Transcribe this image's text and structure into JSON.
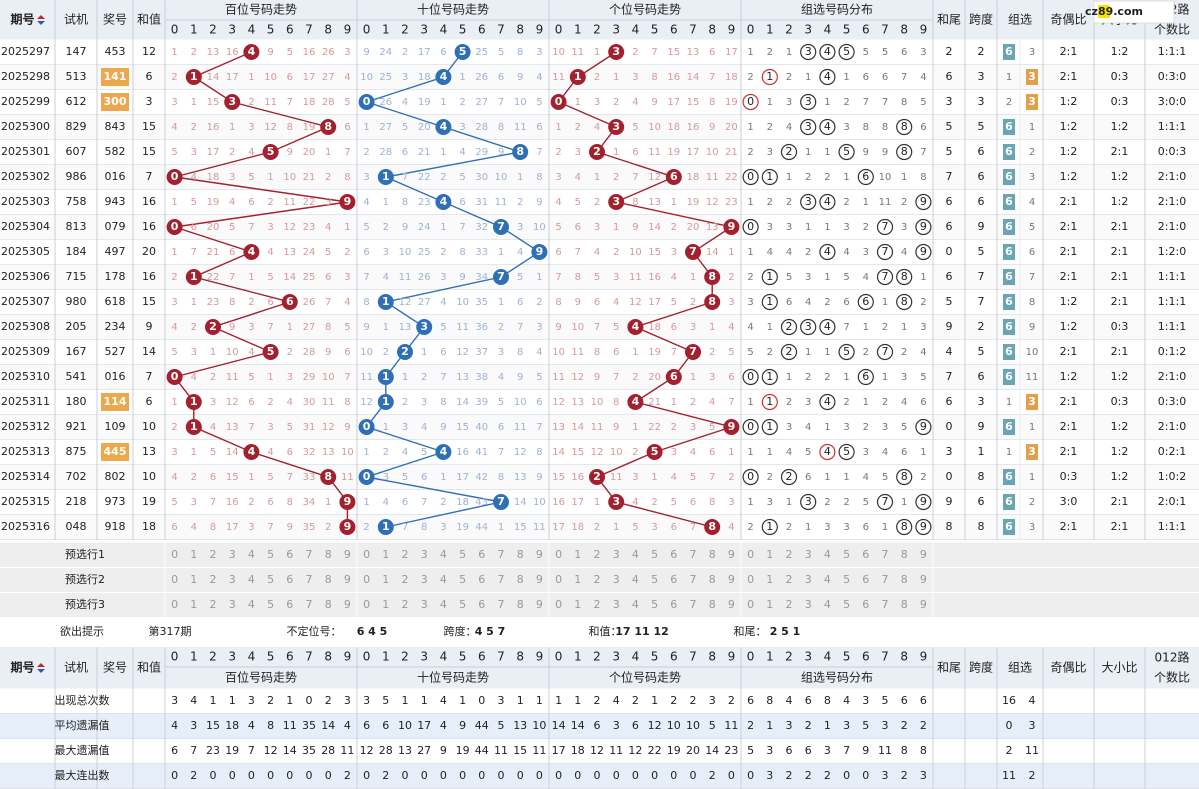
{
  "logo": "cz89.com",
  "header": {
    "period": "期号",
    "test": "试机",
    "draw": "奖号",
    "sum": "和值",
    "sections": [
      "百位号码走势",
      "十位号码走势",
      "个位号码走势",
      "组选号码分布"
    ],
    "digits": [
      0,
      1,
      2,
      3,
      4,
      5,
      6,
      7,
      8,
      9
    ],
    "tail": "和尾",
    "span": "跨度",
    "group": "组选",
    "odd_even": "奇偶比",
    "big_small": "大小比",
    "route": [
      "012路",
      "个数比"
    ]
  },
  "rows": [
    {
      "period": "2025297",
      "test": "147",
      "draw": "453",
      "sum": 12,
      "hundreds": [
        1,
        2,
        13,
        16,
        4,
        9,
        5,
        16,
        26,
        3
      ],
      "tens": [
        9,
        24,
        2,
        17,
        6,
        5,
        25,
        5,
        8,
        3
      ],
      "units": [
        10,
        11,
        1,
        3,
        2,
        7,
        15,
        13,
        6,
        17
      ],
      "group": [
        1,
        2,
        1,
        3,
        4,
        5,
        5,
        5,
        6,
        3
      ],
      "tail": 2,
      "span": 2,
      "zu": [
        6,
        3
      ],
      "odd_even": "2:1",
      "big_small": "1:2",
      "route": "1:1:1"
    },
    {
      "period": "2025298",
      "test": "513",
      "draw": "141",
      "sum": 6,
      "hundreds": [
        2,
        1,
        14,
        17,
        1,
        10,
        6,
        17,
        27,
        4
      ],
      "tens": [
        10,
        25,
        3,
        18,
        4,
        1,
        26,
        6,
        9,
        4
      ],
      "units": [
        11,
        1,
        2,
        1,
        3,
        8,
        16,
        14,
        7,
        18
      ],
      "group": [
        2,
        1,
        2,
        1,
        4,
        1,
        6,
        6,
        7,
        4
      ],
      "tail": 6,
      "span": 3,
      "zu": [
        1,
        3
      ],
      "odd_even": "2:1",
      "big_small": "0:3",
      "route": "0:3:0"
    },
    {
      "period": "2025299",
      "test": "612",
      "draw": "300",
      "sum": 3,
      "hundreds": [
        3,
        1,
        15,
        3,
        2,
        11,
        7,
        18,
        28,
        5
      ],
      "tens": [
        0,
        26,
        4,
        19,
        1,
        2,
        27,
        7,
        10,
        5
      ],
      "units": [
        0,
        1,
        3,
        2,
        4,
        9,
        17,
        15,
        8,
        19
      ],
      "group": [
        0,
        1,
        3,
        3,
        1,
        2,
        7,
        7,
        8,
        5
      ],
      "tail": 3,
      "span": 3,
      "zu": [
        2,
        3
      ],
      "odd_even": "1:2",
      "big_small": "0:3",
      "route": "3:0:0"
    },
    {
      "period": "2025300",
      "test": "829",
      "draw": "843",
      "sum": 15,
      "hundreds": [
        4,
        2,
        16,
        1,
        3,
        12,
        8,
        19,
        8,
        6
      ],
      "tens": [
        1,
        27,
        5,
        20,
        4,
        3,
        28,
        8,
        11,
        6
      ],
      "units": [
        1,
        2,
        4,
        3,
        5,
        10,
        18,
        16,
        9,
        20
      ],
      "group": [
        1,
        2,
        4,
        3,
        4,
        3,
        8,
        8,
        8,
        6
      ],
      "tail": 5,
      "span": 5,
      "zu": [
        6,
        1
      ],
      "odd_even": "1:2",
      "big_small": "1:2",
      "route": "1:1:1"
    },
    {
      "period": "2025301",
      "test": "607",
      "draw": "582",
      "sum": 15,
      "hundreds": [
        5,
        3,
        17,
        2,
        4,
        5,
        9,
        20,
        1,
        7
      ],
      "tens": [
        2,
        28,
        6,
        21,
        1,
        4,
        29,
        9,
        8,
        7
      ],
      "units": [
        2,
        3,
        2,
        1,
        6,
        11,
        19,
        17,
        10,
        21
      ],
      "group": [
        2,
        3,
        2,
        1,
        1,
        5,
        9,
        9,
        8,
        7
      ],
      "tail": 5,
      "span": 6,
      "zu": [
        6,
        2
      ],
      "odd_even": "1:2",
      "big_small": "2:1",
      "route": "0:0:3"
    },
    {
      "period": "2025302",
      "test": "986",
      "draw": "016",
      "sum": 7,
      "hundreds": [
        0,
        4,
        18,
        3,
        5,
        1,
        10,
        21,
        2,
        8
      ],
      "tens": [
        3,
        1,
        7,
        22,
        2,
        5,
        30,
        10,
        1,
        8
      ],
      "units": [
        3,
        4,
        1,
        2,
        7,
        12,
        6,
        18,
        11,
        22
      ],
      "group": [
        0,
        1,
        1,
        2,
        2,
        1,
        6,
        10,
        1,
        8
      ],
      "tail": 7,
      "span": 6,
      "zu": [
        6,
        3
      ],
      "odd_even": "1:2",
      "big_small": "1:2",
      "route": "2:1:0"
    },
    {
      "period": "2025303",
      "test": "758",
      "draw": "943",
      "sum": 16,
      "hundreds": [
        1,
        5,
        19,
        4,
        6,
        2,
        11,
        22,
        3,
        9
      ],
      "tens": [
        4,
        1,
        8,
        23,
        4,
        6,
        31,
        11,
        2,
        9
      ],
      "units": [
        4,
        5,
        2,
        3,
        8,
        13,
        1,
        19,
        12,
        23
      ],
      "group": [
        1,
        2,
        2,
        3,
        4,
        2,
        1,
        11,
        2,
        9
      ],
      "tail": 6,
      "span": 6,
      "zu": [
        6,
        4
      ],
      "odd_even": "2:1",
      "big_small": "1:2",
      "route": "2:1:0"
    },
    {
      "period": "2025304",
      "test": "813",
      "draw": "079",
      "sum": 16,
      "hundreds": [
        0,
        6,
        20,
        5,
        7,
        3,
        12,
        23,
        4,
        1
      ],
      "tens": [
        5,
        2,
        9,
        24,
        1,
        7,
        32,
        7,
        3,
        10
      ],
      "units": [
        5,
        6,
        3,
        1,
        9,
        14,
        2,
        20,
        13,
        9
      ],
      "group": [
        0,
        3,
        3,
        1,
        1,
        3,
        2,
        7,
        3,
        9
      ],
      "tail": 6,
      "span": 9,
      "zu": [
        6,
        5
      ],
      "odd_even": "2:1",
      "big_small": "2:1",
      "route": "2:1:0"
    },
    {
      "period": "2025305",
      "test": "184",
      "draw": "497",
      "sum": 20,
      "hundreds": [
        1,
        7,
        21,
        6,
        4,
        4,
        13,
        24,
        5,
        2
      ],
      "tens": [
        6,
        3,
        10,
        25,
        2,
        8,
        33,
        1,
        4,
        9
      ],
      "units": [
        6,
        7,
        4,
        2,
        10,
        15,
        3,
        7,
        14,
        1
      ],
      "group": [
        1,
        4,
        4,
        2,
        4,
        4,
        3,
        7,
        4,
        9
      ],
      "tail": 0,
      "span": 5,
      "zu": [
        6,
        6
      ],
      "odd_even": "2:1",
      "big_small": "2:1",
      "route": "1:2:0"
    },
    {
      "period": "2025306",
      "test": "715",
      "draw": "178",
      "sum": 16,
      "hundreds": [
        2,
        1,
        22,
        7,
        1,
        5,
        14,
        25,
        6,
        3
      ],
      "tens": [
        7,
        4,
        11,
        26,
        3,
        9,
        34,
        7,
        5,
        1
      ],
      "units": [
        7,
        8,
        5,
        3,
        11,
        16,
        4,
        1,
        8,
        2
      ],
      "group": [
        2,
        1,
        5,
        3,
        1,
        5,
        4,
        7,
        8,
        1
      ],
      "tail": 6,
      "span": 7,
      "zu": [
        6,
        7
      ],
      "odd_even": "2:1",
      "big_small": "2:1",
      "route": "1:1:1"
    },
    {
      "period": "2025307",
      "test": "980",
      "draw": "618",
      "sum": 15,
      "hundreds": [
        3,
        1,
        23,
        8,
        2,
        6,
        6,
        26,
        7,
        4
      ],
      "tens": [
        8,
        1,
        12,
        27,
        4,
        10,
        35,
        1,
        6,
        2
      ],
      "units": [
        8,
        9,
        6,
        4,
        12,
        17,
        5,
        2,
        8,
        3
      ],
      "group": [
        3,
        1,
        6,
        4,
        2,
        6,
        6,
        1,
        8,
        2
      ],
      "tail": 5,
      "span": 7,
      "zu": [
        6,
        8
      ],
      "odd_even": "1:2",
      "big_small": "2:1",
      "route": "1:1:1"
    },
    {
      "period": "2025308",
      "test": "205",
      "draw": "234",
      "sum": 9,
      "hundreds": [
        4,
        2,
        2,
        9,
        3,
        7,
        1,
        27,
        8,
        5
      ],
      "tens": [
        9,
        1,
        13,
        3,
        5,
        11,
        36,
        2,
        7,
        3
      ],
      "units": [
        9,
        10,
        7,
        5,
        4,
        18,
        6,
        3,
        1,
        4
      ],
      "group": [
        4,
        1,
        2,
        3,
        4,
        7,
        1,
        2,
        1,
        3
      ],
      "tail": 9,
      "span": 2,
      "zu": [
        6,
        9
      ],
      "odd_even": "1:2",
      "big_small": "0:3",
      "route": "1:1:1"
    },
    {
      "period": "2025309",
      "test": "167",
      "draw": "527",
      "sum": 14,
      "hundreds": [
        5,
        3,
        1,
        10,
        4,
        5,
        2,
        28,
        9,
        6
      ],
      "tens": [
        10,
        2,
        2,
        1,
        6,
        12,
        37,
        3,
        8,
        4
      ],
      "units": [
        10,
        11,
        8,
        6,
        1,
        19,
        7,
        7,
        2,
        5
      ],
      "group": [
        5,
        2,
        2,
        1,
        1,
        5,
        2,
        7,
        2,
        4
      ],
      "tail": 4,
      "span": 5,
      "zu": [
        6,
        10
      ],
      "odd_even": "2:1",
      "big_small": "2:1",
      "route": "0:1:2"
    },
    {
      "period": "2025310",
      "test": "541",
      "draw": "016",
      "sum": 7,
      "hundreds": [
        0,
        4,
        2,
        11,
        5,
        1,
        3,
        29,
        10,
        7
      ],
      "tens": [
        11,
        1,
        1,
        2,
        7,
        13,
        38,
        4,
        9,
        5
      ],
      "units": [
        11,
        12,
        9,
        7,
        2,
        20,
        6,
        1,
        3,
        6
      ],
      "group": [
        0,
        1,
        1,
        2,
        2,
        1,
        6,
        1,
        3,
        5
      ],
      "tail": 7,
      "span": 6,
      "zu": [
        6,
        11
      ],
      "odd_even": "1:2",
      "big_small": "1:2",
      "route": "2:1:0"
    },
    {
      "period": "2025311",
      "test": "180",
      "draw": "114",
      "sum": 6,
      "hundreds": [
        1,
        1,
        3,
        12,
        6,
        2,
        4,
        30,
        11,
        8
      ],
      "tens": [
        12,
        1,
        2,
        3,
        8,
        14,
        39,
        5,
        10,
        6
      ],
      "units": [
        12,
        13,
        10,
        8,
        4,
        21,
        1,
        2,
        4,
        7
      ],
      "group": [
        1,
        1,
        2,
        3,
        4,
        2,
        1,
        2,
        4,
        6
      ],
      "tail": 6,
      "span": 3,
      "zu": [
        1,
        3
      ],
      "odd_even": "2:1",
      "big_small": "0:3",
      "route": "0:3:0"
    },
    {
      "period": "2025312",
      "test": "921",
      "draw": "109",
      "sum": 10,
      "hundreds": [
        2,
        1,
        4,
        13,
        7,
        3,
        5,
        31,
        12,
        9
      ],
      "tens": [
        0,
        1,
        3,
        4,
        9,
        15,
        40,
        6,
        11,
        7
      ],
      "units": [
        13,
        14,
        11,
        9,
        1,
        22,
        2,
        3,
        5,
        9
      ],
      "group": [
        0,
        1,
        3,
        4,
        1,
        3,
        2,
        3,
        5,
        9
      ],
      "tail": 0,
      "span": 9,
      "zu": [
        6,
        1
      ],
      "odd_even": "2:1",
      "big_small": "1:2",
      "route": "2:1:0"
    },
    {
      "period": "2025313",
      "test": "875",
      "draw": "445",
      "sum": 13,
      "hundreds": [
        3,
        1,
        5,
        14,
        4,
        4,
        6,
        32,
        13,
        10
      ],
      "tens": [
        1,
        2,
        4,
        5,
        4,
        16,
        41,
        7,
        12,
        8
      ],
      "units": [
        14,
        15,
        12,
        10,
        2,
        5,
        3,
        4,
        6,
        1
      ],
      "group": [
        1,
        1,
        4,
        5,
        4,
        5,
        3,
        4,
        6,
        1
      ],
      "tail": 3,
      "span": 1,
      "zu": [
        1,
        3
      ],
      "odd_even": "2:1",
      "big_small": "1:2",
      "route": "0:2:1"
    },
    {
      "period": "2025314",
      "test": "702",
      "draw": "802",
      "sum": 10,
      "hundreds": [
        4,
        2,
        6,
        15,
        1,
        5,
        7,
        33,
        8,
        11
      ],
      "tens": [
        0,
        3,
        5,
        6,
        1,
        17,
        42,
        8,
        13,
        9
      ],
      "units": [
        15,
        16,
        2,
        11,
        3,
        1,
        4,
        5,
        7,
        2
      ],
      "group": [
        0,
        2,
        2,
        6,
        1,
        1,
        4,
        5,
        8,
        2
      ],
      "tail": 0,
      "span": 8,
      "zu": [
        6,
        1
      ],
      "odd_even": "0:3",
      "big_small": "1:2",
      "route": "1:0:2"
    },
    {
      "period": "2025315",
      "test": "218",
      "draw": "973",
      "sum": 19,
      "hundreds": [
        5,
        3,
        7,
        16,
        2,
        6,
        8,
        34,
        1,
        9
      ],
      "tens": [
        1,
        4,
        6,
        7,
        2,
        18,
        43,
        7,
        14,
        10
      ],
      "units": [
        16,
        17,
        1,
        3,
        4,
        2,
        5,
        6,
        8,
        3
      ],
      "group": [
        1,
        3,
        1,
        3,
        2,
        2,
        5,
        7,
        1,
        9
      ],
      "tail": 9,
      "span": 6,
      "zu": [
        6,
        2
      ],
      "odd_even": "3:0",
      "big_small": "2:1",
      "route": "2:0:1"
    },
    {
      "period": "2025316",
      "test": "048",
      "draw": "918",
      "sum": 18,
      "hundreds": [
        6,
        4,
        8,
        17,
        3,
        7,
        9,
        35,
        2,
        9
      ],
      "tens": [
        2,
        1,
        7,
        8,
        3,
        19,
        44,
        1,
        15,
        11
      ],
      "units": [
        17,
        18,
        2,
        1,
        5,
        3,
        6,
        7,
        8,
        4
      ],
      "group": [
        2,
        1,
        2,
        1,
        3,
        3,
        6,
        1,
        8,
        9
      ],
      "tail": 8,
      "span": 8,
      "zu": [
        6,
        3
      ],
      "odd_even": "2:1",
      "big_small": "2:1",
      "route": "1:1:1"
    }
  ],
  "predict": {
    "labels": [
      "预选行1",
      "预选行2",
      "预选行3"
    ]
  },
  "hint": {
    "label": "欲出提示",
    "period": "第317期",
    "items": [
      {
        "label": "不定位号：",
        "value": "6 4 5"
      },
      {
        "label": "跨度：",
        "value": "4 5 7"
      },
      {
        "label": "和值：",
        "value": "17 11 12"
      },
      {
        "label": "和尾：",
        "value": "2 5 1"
      }
    ]
  },
  "stats": [
    {
      "label": "出现总次数",
      "hundreds": [
        3,
        4,
        1,
        1,
        3,
        2,
        1,
        0,
        2,
        3
      ],
      "tens": [
        3,
        5,
        1,
        1,
        4,
        1,
        0,
        3,
        1,
        1
      ],
      "units": [
        1,
        1,
        2,
        4,
        2,
        1,
        2,
        2,
        3,
        2
      ],
      "group": [
        6,
        8,
        4,
        6,
        8,
        4,
        3,
        5,
        6,
        6
      ],
      "zu": [
        16,
        4
      ]
    },
    {
      "label": "平均遗漏值",
      "hundreds": [
        4,
        3,
        15,
        18,
        4,
        8,
        11,
        35,
        14,
        4
      ],
      "tens": [
        6,
        6,
        10,
        17,
        4,
        9,
        44,
        5,
        13,
        10
      ],
      "units": [
        14,
        14,
        6,
        3,
        6,
        12,
        10,
        10,
        5,
        11
      ],
      "group": [
        2,
        1,
        3,
        2,
        1,
        3,
        5,
        3,
        2,
        2
      ],
      "zu": [
        0,
        3
      ]
    },
    {
      "label": "最大遗漏值",
      "hundreds": [
        6,
        7,
        23,
        19,
        7,
        12,
        14,
        35,
        28,
        11
      ],
      "tens": [
        12,
        28,
        13,
        27,
        9,
        19,
        44,
        11,
        15,
        11
      ],
      "units": [
        17,
        18,
        12,
        11,
        12,
        22,
        19,
        20,
        14,
        23
      ],
      "group": [
        5,
        3,
        6,
        6,
        3,
        7,
        9,
        11,
        8,
        8
      ],
      "zu": [
        2,
        11
      ]
    },
    {
      "label": "最大连出数",
      "hundreds": [
        0,
        2,
        0,
        0,
        0,
        0,
        0,
        0,
        0,
        2
      ],
      "tens": [
        0,
        2,
        0,
        0,
        0,
        0,
        0,
        0,
        0,
        0
      ],
      "units": [
        0,
        0,
        0,
        0,
        0,
        0,
        0,
        0,
        2,
        0
      ],
      "group": [
        0,
        3,
        2,
        2,
        2,
        0,
        0,
        3,
        2,
        3
      ],
      "zu": [
        11,
        2
      ]
    }
  ]
}
